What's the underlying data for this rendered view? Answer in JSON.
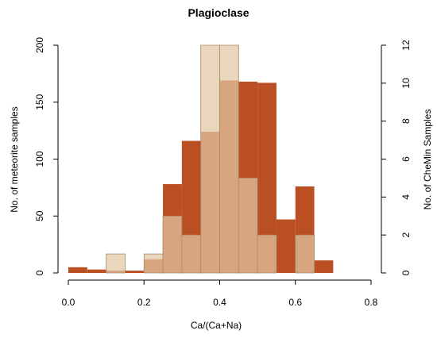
{
  "chart_data": {
    "type": "bar",
    "title": "Plagioclase",
    "xlabel": "Ca/(Ca+Na)",
    "ylabel_left": "No. of meteorite samples",
    "ylabel_right": "No. of CheMin Samples",
    "xlim": [
      0,
      0.8
    ],
    "ylim_left": [
      0,
      200
    ],
    "ylim_right": [
      0,
      12
    ],
    "x_ticks": [
      0,
      0.2,
      0.4,
      0.6,
      0.8
    ],
    "x_tick_labels": [
      "0.0",
      "0.2",
      "0.4",
      "0.6",
      "0.8"
    ],
    "y_left_ticks": [
      0,
      50,
      100,
      150,
      200
    ],
    "y_left_tick_labels": [
      "0",
      "50",
      "100",
      "150",
      "200"
    ],
    "y_right_ticks": [
      0,
      2,
      4,
      6,
      8,
      10,
      12
    ],
    "y_right_tick_labels": [
      "0",
      "2",
      "4",
      "6",
      "8",
      "10",
      "12"
    ],
    "bin_width": 0.05,
    "series": [
      {
        "axis": "left",
        "color": "#b94f22",
        "bins": [
          {
            "x0": 0.0,
            "value": 5
          },
          {
            "x0": 0.05,
            "value": 3
          },
          {
            "x0": 0.1,
            "value": 2
          },
          {
            "x0": 0.15,
            "value": 2
          },
          {
            "x0": 0.2,
            "value": 12
          },
          {
            "x0": 0.25,
            "value": 78
          },
          {
            "x0": 0.3,
            "value": 116
          },
          {
            "x0": 0.35,
            "value": 124
          },
          {
            "x0": 0.4,
            "value": 169
          },
          {
            "x0": 0.45,
            "value": 168
          },
          {
            "x0": 0.5,
            "value": 167
          },
          {
            "x0": 0.55,
            "value": 47
          },
          {
            "x0": 0.6,
            "value": 76
          },
          {
            "x0": 0.65,
            "value": 11
          }
        ]
      },
      {
        "axis": "right",
        "color": "#e2c6a4",
        "bins": [
          {
            "x0": 0.1,
            "value": 1
          },
          {
            "x0": 0.2,
            "value": 1
          },
          {
            "x0": 0.25,
            "value": 3
          },
          {
            "x0": 0.3,
            "value": 2
          },
          {
            "x0": 0.35,
            "value": 12
          },
          {
            "x0": 0.4,
            "value": 12
          },
          {
            "x0": 0.45,
            "value": 5
          },
          {
            "x0": 0.5,
            "value": 2
          },
          {
            "x0": 0.6,
            "value": 2
          }
        ]
      }
    ]
  }
}
